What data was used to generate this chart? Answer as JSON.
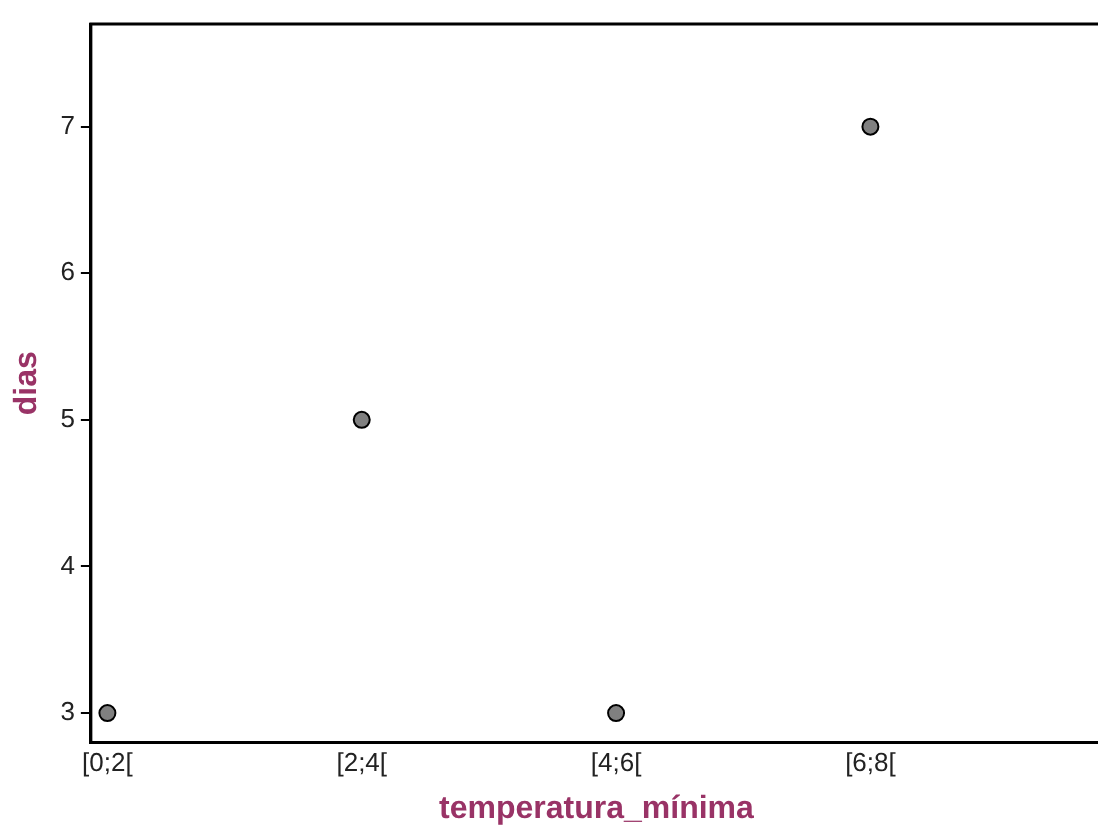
{
  "chart_data": {
    "type": "scatter",
    "xlabel": "temperatura_mínima",
    "ylabel": "dias",
    "categories": [
      "[0;2[",
      "[2;4[",
      "[4;6[",
      "[6;8["
    ],
    "series": [
      {
        "color": "#808080",
        "values": [
          3,
          5,
          3,
          7
        ]
      }
    ],
    "ylim": [
      2.8,
      7.7
    ],
    "yticks": [
      3,
      4,
      5,
      6,
      7
    ],
    "grid": false,
    "legend": false,
    "marker": "circle"
  }
}
